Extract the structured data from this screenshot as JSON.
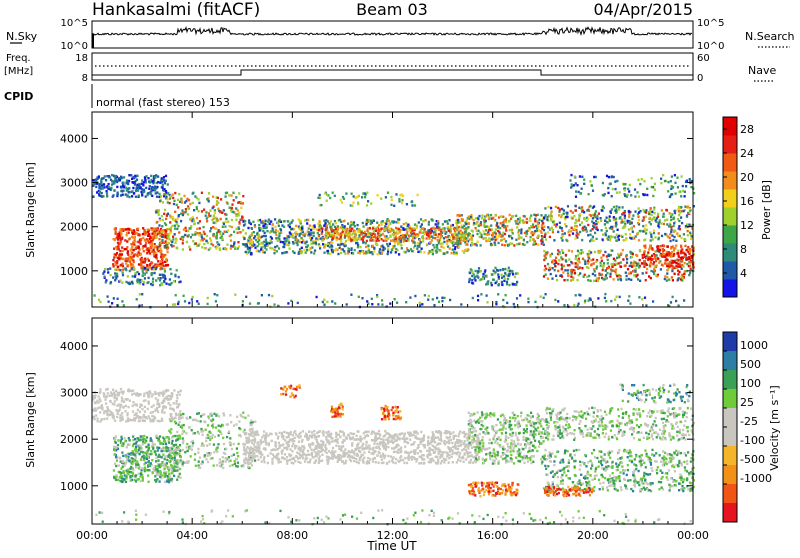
{
  "header": {
    "station": "Hankasalmi (fitACF)",
    "beam": "Beam 03",
    "date": "04/Apr/2015"
  },
  "left_labels": {
    "nsky": "N.Sky",
    "freq": "Freq.",
    "mhz": "[MHz]",
    "cpid": "CPID"
  },
  "right_labels": {
    "nsearch": "N.Search",
    "nave": "Nave"
  },
  "noise_panel": {
    "left_ticks": [
      "10^5",
      "10^0"
    ],
    "right_ticks": [
      "10^5",
      "10^0"
    ]
  },
  "freq_panel": {
    "left_ticks": [
      "18",
      "8"
    ],
    "right_ticks": [
      "60",
      "0"
    ]
  },
  "cpid_text": "normal (fast stereo) 153",
  "colors": {
    "power_scale": [
      "#1414e6",
      "#1f5aa8",
      "#2e8b7a",
      "#3fa648",
      "#9ed02e",
      "#f2cf1a",
      "#f28c1a",
      "#f05a14",
      "#e61e14",
      "#e00000"
    ],
    "velocity_scale": [
      "#e6141e",
      "#f05514",
      "#f29018",
      "#f5b52a",
      "#c8c6bf",
      "#c8c6bf",
      "#6ecb3a",
      "#3aa055",
      "#2d7ea6",
      "#1e3ca8"
    ],
    "ground_grey": "#c8c6bf"
  },
  "chart_data": [
    {
      "type": "heatmap",
      "name": "power",
      "ylabel": "Slant Range [km]",
      "xlabel": "",
      "xlim": [
        "00:00",
        "24:00"
      ],
      "ylim": [
        180,
        4600
      ],
      "y_ticks": [
        "1000",
        "2000",
        "3000",
        "4000"
      ],
      "x_ticks": [
        "00:00",
        "04:00",
        "08:00",
        "12:00",
        "16:00",
        "20:00",
        "00:00"
      ],
      "colorbar": {
        "label": "Power [dB]",
        "ticks": [
          "4",
          "8",
          "12",
          "16",
          "20",
          "24",
          "28"
        ],
        "range": [
          0,
          30
        ]
      }
    },
    {
      "type": "heatmap",
      "name": "velocity",
      "ylabel": "Slant Range [km]",
      "xlabel": "Time UT",
      "xlim": [
        "00:00",
        "24:00"
      ],
      "ylim": [
        180,
        4600
      ],
      "y_ticks": [
        "1000",
        "2000",
        "3000",
        "4000"
      ],
      "x_ticks": [
        "00:00",
        "04:00",
        "08:00",
        "12:00",
        "16:00",
        "20:00",
        "00:00"
      ],
      "colorbar": {
        "label": "Velocity [m s⁻¹]",
        "ticks": [
          "1000",
          "500",
          "100",
          "25",
          "-25",
          "-100",
          "-500",
          "-1000"
        ]
      }
    }
  ]
}
